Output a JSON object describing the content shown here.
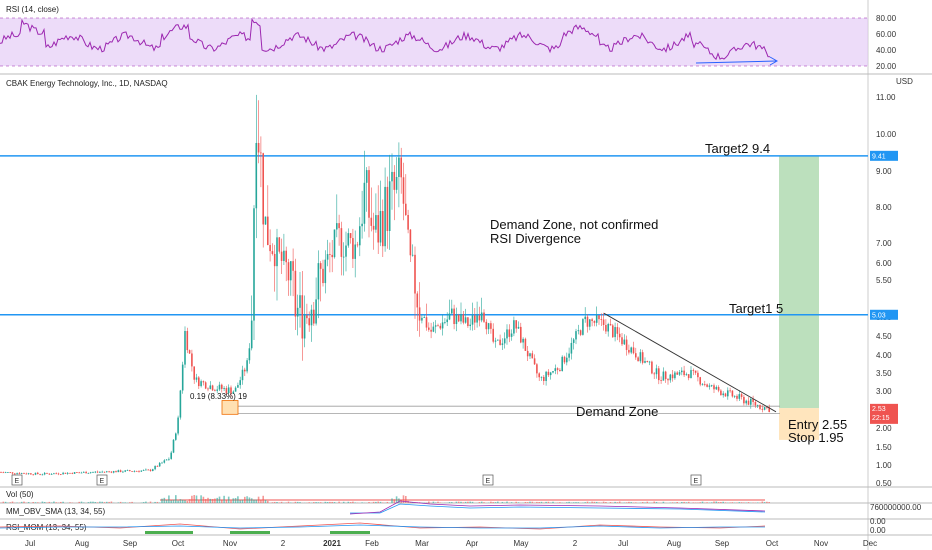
{
  "rsi_panel": {
    "title": "RSI (14, close)",
    "ticks": [
      "80.00",
      "60.00",
      "40.00",
      "20.00"
    ],
    "tick_values": [
      80,
      60,
      40,
      20
    ],
    "band_color": "#e1c4f5",
    "line_color": "#9c27b0"
  },
  "main_panel": {
    "title": "CBAK Energy Technology, Inc., 1D, NASDAQ",
    "currency": "USD",
    "y_ticks": [
      "11.00",
      "10.00",
      "9.00",
      "8.00",
      "7.00",
      "6.00",
      "5.50",
      "5.00",
      "4.50",
      "4.00",
      "3.50",
      "3.00",
      "2.50",
      "2.00",
      "1.50",
      "1.00",
      "0.50"
    ],
    "y_tick_values": [
      11,
      10,
      9,
      8,
      7,
      6,
      5.5,
      5,
      4.5,
      4,
      3.5,
      3,
      2.5,
      2,
      1.5,
      1,
      0.5
    ],
    "target2_tag": "9.41",
    "target1_tag": "5.03",
    "last_price_tag": "2.53",
    "countdown": "22:15",
    "line_color": "#2196f3",
    "up_color": "#26a69a",
    "down_color": "#ef5350"
  },
  "annotations": {
    "target2": "Target2 9.4",
    "target1": "Target1 5",
    "demand_note_line1": "Demand Zone, not confirmed",
    "demand_note_line2": "RSI Divergence",
    "demand_zone": "Demand Zone",
    "entry": "Entry 2.55",
    "stop": "Stop 1.95",
    "measure": "0.19 (8.33%) 19"
  },
  "earnings_markers": [
    "E",
    "E",
    "E",
    "E"
  ],
  "vol_panel": {
    "title": "Vol (50)"
  },
  "obv_panel": {
    "title": "MM_OBV_SMA (13, 34, 55)",
    "tick": "760000000.00"
  },
  "bottom_panel": {
    "title": "RSI_MOM (13, 34, 55)",
    "ticks": [
      "0.00",
      "0.00"
    ]
  },
  "x_axis": {
    "labels": [
      "Jul",
      "Aug",
      "Sep",
      "Oct",
      "Nov",
      "2",
      "2021",
      "Feb",
      "Mar",
      "Apr",
      "May",
      "2",
      "Jul",
      "Aug",
      "Sep",
      "Oct",
      "Nov",
      "Dec"
    ]
  },
  "chart_data": {
    "type": "candlestick",
    "title": "CBAK Energy Technology, Inc., 1D, NASDAQ",
    "x_range": [
      "Jul 2020",
      "Dec 2021"
    ],
    "y_range": [
      0.5,
      11.5
    ],
    "key_levels": {
      "target2": 9.41,
      "target1": 5.03,
      "entry": 2.55,
      "stop": 1.95,
      "last": 2.53
    },
    "approx_close_path": [
      {
        "t": "Jul",
        "p": 0.8
      },
      {
        "t": "Aug",
        "p": 0.75
      },
      {
        "t": "Sep",
        "p": 0.85
      },
      {
        "t": "Oct",
        "p": 3.2
      },
      {
        "t": "Oct",
        "p": 4.5
      },
      {
        "t": "Nov",
        "p": 3.1
      },
      {
        "t": "Nov",
        "p": 11.3
      },
      {
        "t": "Dec",
        "p": 7.0
      },
      {
        "t": "Dec",
        "p": 5.0
      },
      {
        "t": "2021",
        "p": 6.5
      },
      {
        "t": "Jan",
        "p": 9.3
      },
      {
        "t": "Feb",
        "p": 8.2
      },
      {
        "t": "Feb",
        "p": 6.4
      },
      {
        "t": "Mar",
        "p": 4.8
      },
      {
        "t": "Apr",
        "p": 5.3
      },
      {
        "t": "Apr",
        "p": 4.6
      },
      {
        "t": "May",
        "p": 3.3
      },
      {
        "t": "May",
        "p": 4.0
      },
      {
        "t": "Jun",
        "p": 4.9
      },
      {
        "t": "Jul",
        "p": 4.2
      },
      {
        "t": "Aug",
        "p": 3.6
      },
      {
        "t": "Aug",
        "p": 3.1
      },
      {
        "t": "Sep",
        "p": 2.8
      },
      {
        "t": "Sep",
        "p": 2.53
      }
    ]
  }
}
